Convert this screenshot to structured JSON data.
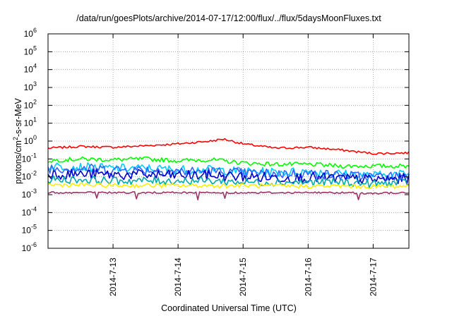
{
  "chart_data": {
    "type": "line",
    "title": "/data/run/goesPlots/archive/2014-07-17/12:00/flux/../flux/5daysMoonFluxes.txt",
    "xlabel": "Coordinated Universal Time (UTC)",
    "ylabel": {
      "pre": "protons/cm",
      "sup": "2",
      "post": "-s-sr-MeV"
    },
    "yscale": "log",
    "ylim": [
      -6,
      6
    ],
    "yticks": [
      {
        "base": "10",
        "exp": "6"
      },
      {
        "base": "10",
        "exp": "5"
      },
      {
        "base": "10",
        "exp": "4"
      },
      {
        "base": "10",
        "exp": "3"
      },
      {
        "base": "10",
        "exp": "2"
      },
      {
        "base": "10",
        "exp": "1"
      },
      {
        "base": "10",
        "exp": "0"
      },
      {
        "base": "10",
        "exp": "-1"
      },
      {
        "base": "10",
        "exp": "-2"
      },
      {
        "base": "10",
        "exp": "-3"
      },
      {
        "base": "10",
        "exp": "-4"
      },
      {
        "base": "10",
        "exp": "-5"
      },
      {
        "base": "10",
        "exp": "-6"
      }
    ],
    "xlim": [
      12.0,
      17.55
    ],
    "xticks": [
      {
        "v": 13,
        "label": "2014-7-13"
      },
      {
        "v": 14,
        "label": "2014-7-14"
      },
      {
        "v": 15,
        "label": "2014-7-15"
      },
      {
        "v": 16,
        "label": "2014-7-16"
      },
      {
        "v": 17,
        "label": "2014-7-17"
      }
    ],
    "grid": true,
    "series": [
      {
        "color": "#ff0000",
        "x": [
          12.0,
          12.5,
          13.0,
          13.5,
          14.0,
          14.5,
          14.7,
          15.0,
          15.5,
          16.0,
          16.5,
          17.0,
          17.55
        ],
        "y": [
          0.4,
          0.5,
          0.45,
          0.55,
          0.7,
          1.0,
          1.3,
          0.7,
          0.4,
          0.45,
          0.32,
          0.2,
          0.22
        ]
      },
      {
        "color": "#00ff00",
        "x": [
          12.0,
          12.5,
          13.0,
          13.5,
          14.0,
          14.5,
          15.0,
          15.5,
          16.0,
          16.5,
          17.0,
          17.55
        ],
        "y": [
          0.08,
          0.1,
          0.09,
          0.1,
          0.08,
          0.09,
          0.06,
          0.05,
          0.05,
          0.04,
          0.04,
          0.04
        ]
      },
      {
        "color": "#00ccff",
        "x": [
          12.0,
          12.5,
          13.0,
          13.5,
          14.0,
          14.5,
          15.0,
          15.5,
          16.0,
          16.5,
          17.0,
          17.55
        ],
        "y": [
          0.04,
          0.035,
          0.03,
          0.03,
          0.025,
          0.025,
          0.02,
          0.018,
          0.02,
          0.015,
          0.012,
          0.015
        ]
      },
      {
        "color": "#3366ff",
        "x": [
          12.0,
          12.5,
          13.0,
          13.5,
          14.0,
          14.5,
          15.0,
          15.5,
          16.0,
          16.5,
          17.0,
          17.55
        ],
        "y": [
          0.03,
          0.03,
          0.025,
          0.025,
          0.02,
          0.02,
          0.016,
          0.015,
          0.015,
          0.012,
          0.01,
          0.011
        ]
      },
      {
        "color": "#0000cc",
        "x": [
          12.0,
          12.5,
          13.0,
          13.5,
          14.0,
          14.5,
          15.0,
          15.5,
          16.0,
          16.5,
          17.0,
          17.55
        ],
        "y": [
          0.015,
          0.014,
          0.013,
          0.013,
          0.012,
          0.012,
          0.01,
          0.009,
          0.009,
          0.008,
          0.007,
          0.008
        ]
      },
      {
        "color": "#00aaaa",
        "x": [
          12.0,
          12.5,
          13.0,
          13.5,
          14.0,
          14.5,
          15.0,
          15.5,
          16.0,
          16.5,
          17.0,
          17.55
        ],
        "y": [
          0.007,
          0.007,
          0.006,
          0.006,
          0.006,
          0.006,
          0.005,
          0.005,
          0.005,
          0.005,
          0.004,
          0.005
        ]
      },
      {
        "color": "#ffee00",
        "x": [
          12.0,
          12.5,
          13.0,
          13.5,
          14.0,
          14.5,
          15.0,
          15.5,
          16.0,
          16.5,
          17.0,
          17.55
        ],
        "y": [
          0.0035,
          0.0035,
          0.0032,
          0.0033,
          0.0032,
          0.0032,
          0.0032,
          0.003,
          0.003,
          0.003,
          0.0028,
          0.003
        ]
      },
      {
        "color": "#993366",
        "x": [
          12.0,
          12.5,
          13.0,
          13.5,
          14.0,
          14.5,
          15.0,
          15.5,
          16.0,
          16.5,
          17.0,
          17.55
        ],
        "y": [
          0.0013,
          0.0013,
          0.0013,
          0.0013,
          0.0013,
          0.0013,
          0.0013,
          0.0013,
          0.0013,
          0.0013,
          0.0012,
          0.0013
        ]
      }
    ]
  }
}
